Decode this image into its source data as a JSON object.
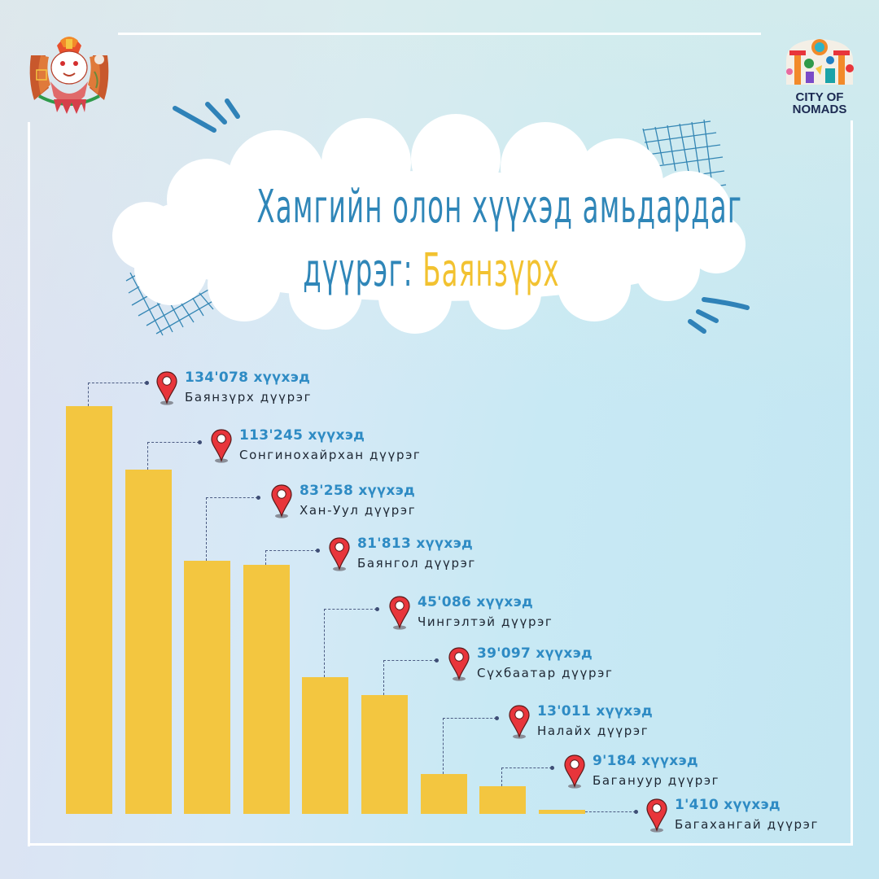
{
  "header": {
    "left_logo": "mongolian-emblem-icon",
    "right_logo_text_line1": "CITY OF",
    "right_logo_text_line2": "NOMADS"
  },
  "title": {
    "line1": "Хамгийн олон хүүхэд амьдардаг",
    "line2_prefix": "дүүрэг: ",
    "line2_accent": "Баянзүрх",
    "color": "#2f86b8",
    "accent_color": "#f2c230"
  },
  "colors": {
    "bar": "#f3c640",
    "value_text": "#2e8bc4",
    "name_text": "#1e2733",
    "pin": "#e8353b",
    "connector": "#4b5b82",
    "frame": "#ffffff"
  },
  "chart_data": {
    "type": "bar",
    "title": "Хамгийн олон хүүхэд амьдардаг дүүрэг: Баянзүрх",
    "xlabel": "",
    "ylabel": "",
    "unit": "хүүхэд",
    "grid": false,
    "legend": "none",
    "categories": [
      "Баянзүрх дүүрэг",
      "Сонгинохайрхан дүүрэг",
      "Хан-Уул дүүрэг",
      "Баянгол дүүрэг",
      "Чингэлтэй дүүрэг",
      "Сүхбаатар дүүрэг",
      "Налайх дүүрэг",
      "Багануур дүүрэг",
      "Багахангай дүүрэг"
    ],
    "values": [
      134078,
      113245,
      83258,
      81813,
      45086,
      39097,
      13011,
      9184,
      1410
    ],
    "labels": [
      {
        "value": "134'078 хүүхэд",
        "name": "Баянзүрх дүүрэг"
      },
      {
        "value": "113'245 хүүхэд",
        "name": "Сонгинохайрхан дүүрэг"
      },
      {
        "value": "83'258 хүүхэд",
        "name": "Хан-Уул дүүрэг"
      },
      {
        "value": "81'813 хүүхэд",
        "name": "Баянгол дүүрэг"
      },
      {
        "value": "45'086 хүүхэд",
        "name": "Чингэлтэй дүүрэг"
      },
      {
        "value": "39'097 хүүхэд",
        "name": "Сүхбаатар дүүрэг"
      },
      {
        "value": "13'011 хүүхэд",
        "name": "Налайх дүүрэг"
      },
      {
        "value": "9'184 хүүхэд",
        "name": "Багануур дүүрэг"
      },
      {
        "value": "1'410 хүүхэд",
        "name": "Багахангай дүүрэг"
      }
    ],
    "ylim": [
      0,
      134078
    ]
  }
}
